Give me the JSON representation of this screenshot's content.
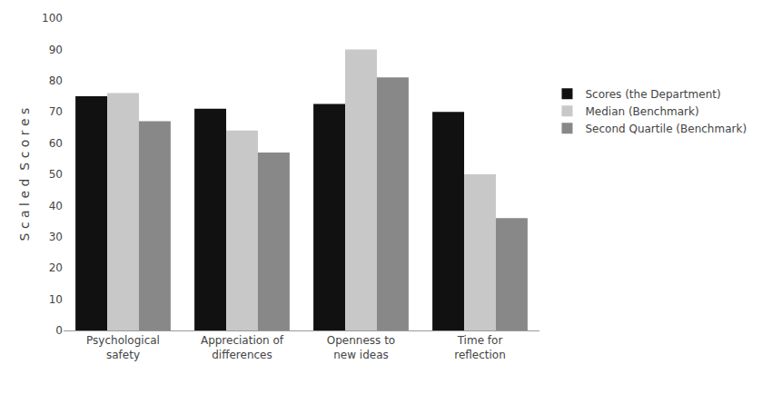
{
  "chart_data": {
    "type": "bar",
    "categories": [
      "Psychological\nsafety",
      "Appreciation of\ndifferences",
      "Openness to\nnew ideas",
      "Time for\nreflection"
    ],
    "series": [
      {
        "name": "Scores (the Department)",
        "color": "#111111",
        "values": [
          75,
          71,
          72.5,
          70
        ]
      },
      {
        "name": "Median (Benchmark)",
        "color": "#c8c8c8",
        "values": [
          76,
          64,
          90,
          50
        ]
      },
      {
        "name": "Second Quartile (Benchmark)",
        "color": "#888888",
        "values": [
          67,
          57,
          81,
          36
        ]
      }
    ],
    "ylabel": "S c a l e d  S c o r e s",
    "ylim": [
      0,
      100
    ],
    "yticks": [
      0,
      10,
      20,
      30,
      40,
      50,
      60,
      70,
      80,
      90,
      100
    ],
    "grid": false,
    "legend": "right"
  }
}
